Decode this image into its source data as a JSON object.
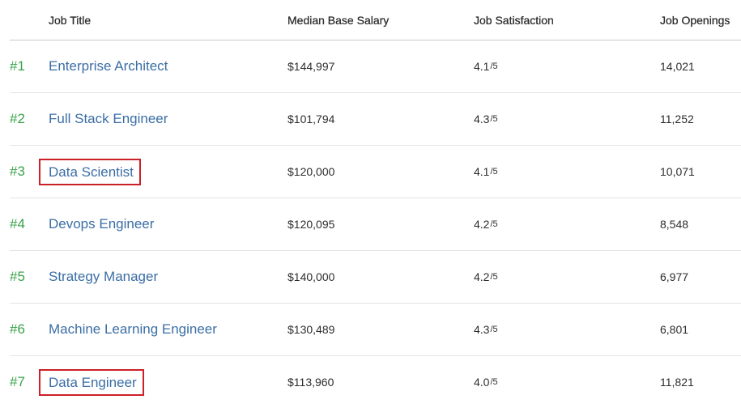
{
  "headers": {
    "job_title": "Job Title",
    "median_base_salary": "Median Base Salary",
    "job_satisfaction": "Job Satisfaction",
    "job_openings": "Job Openings"
  },
  "rows": [
    {
      "rank": "#1",
      "title": "Enterprise Architect",
      "salary": "$144,997",
      "satisfaction": "4.1",
      "satisfaction_scale": "/5",
      "openings": "14,021",
      "highlighted": false
    },
    {
      "rank": "#2",
      "title": "Full Stack Engineer",
      "salary": "$101,794",
      "satisfaction": "4.3",
      "satisfaction_scale": "/5",
      "openings": "11,252",
      "highlighted": false
    },
    {
      "rank": "#3",
      "title": "Data Scientist",
      "salary": "$120,000",
      "satisfaction": "4.1",
      "satisfaction_scale": "/5",
      "openings": "10,071",
      "highlighted": true
    },
    {
      "rank": "#4",
      "title": "Devops Engineer",
      "salary": "$120,095",
      "satisfaction": "4.2",
      "satisfaction_scale": "/5",
      "openings": "8,548",
      "highlighted": false
    },
    {
      "rank": "#5",
      "title": "Strategy Manager",
      "salary": "$140,000",
      "satisfaction": "4.2",
      "satisfaction_scale": "/5",
      "openings": "6,977",
      "highlighted": false
    },
    {
      "rank": "#6",
      "title": "Machine Learning Engineer",
      "salary": "$130,489",
      "satisfaction": "4.3",
      "satisfaction_scale": "/5",
      "openings": "6,801",
      "highlighted": false
    },
    {
      "rank": "#7",
      "title": "Data Engineer",
      "salary": "$113,960",
      "satisfaction": "4.0",
      "satisfaction_scale": "/5",
      "openings": "11,821",
      "highlighted": true
    }
  ],
  "colors": {
    "rank": "#3aa34b",
    "link": "#3b6ea5",
    "highlight_box": "#cc1f26"
  }
}
